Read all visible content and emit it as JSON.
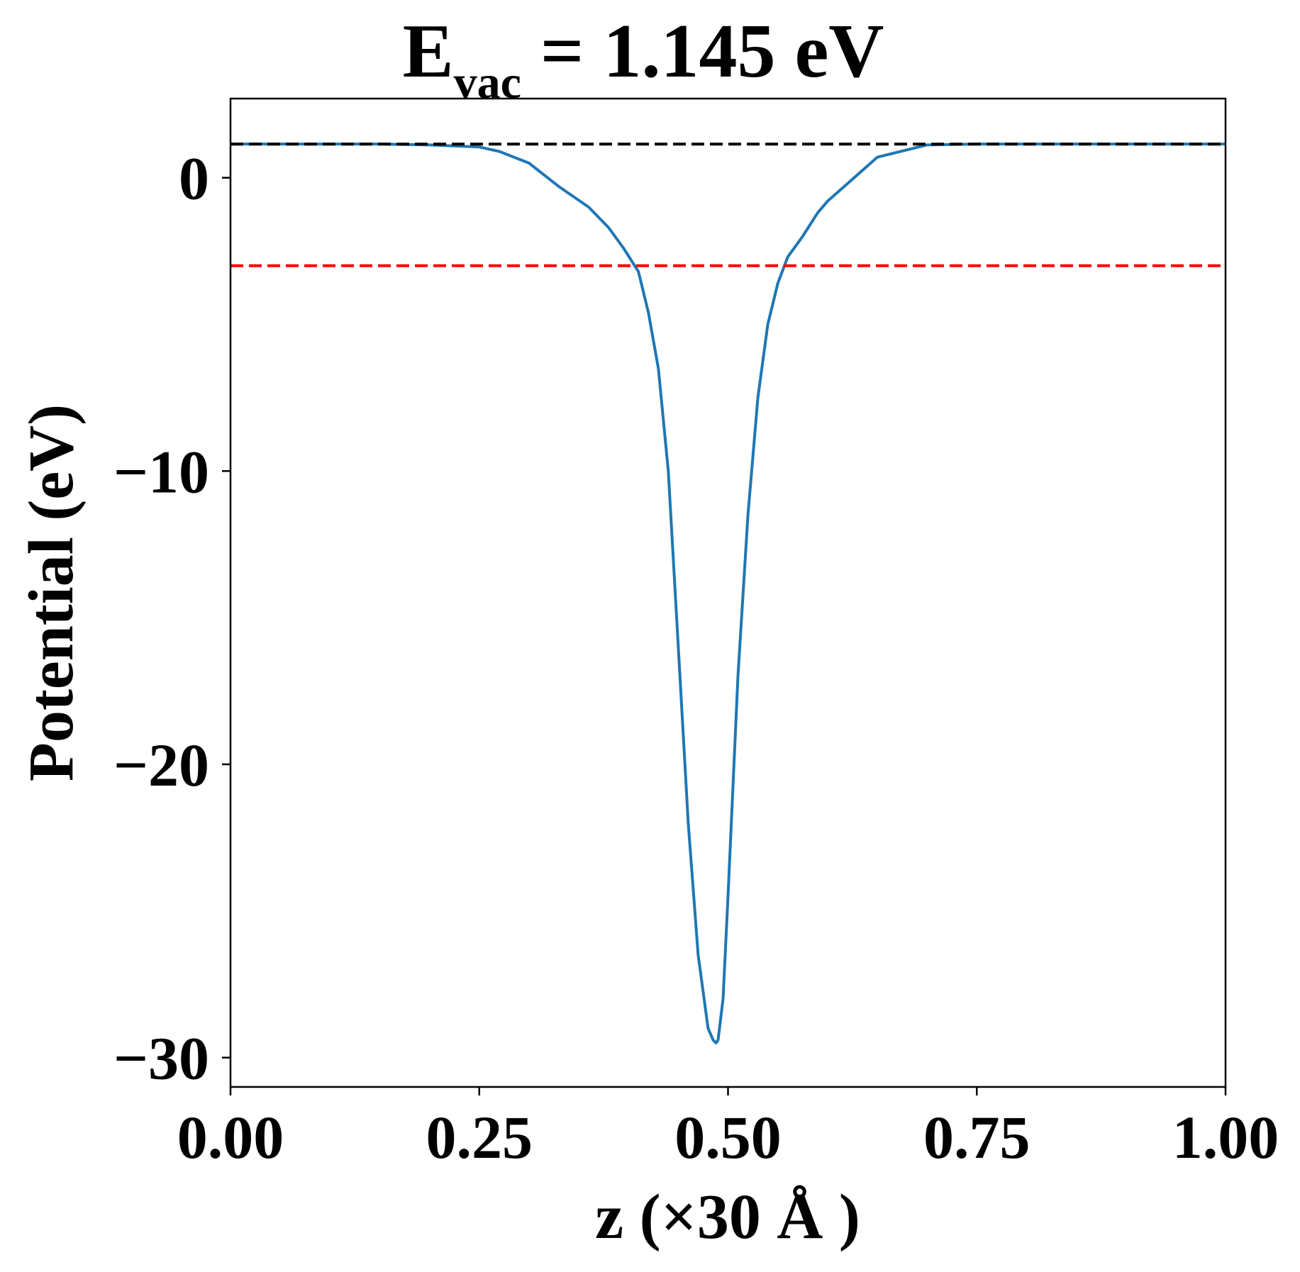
{
  "chart_data": {
    "type": "line",
    "title_main": "E",
    "title_sub": "vac",
    "title_rest": " = 1.145 eV",
    "xlabel": "z (×30 Å )",
    "ylabel": "Potential (eV)",
    "xlim": [
      0.0,
      1.0
    ],
    "ylim": [
      -31.0,
      2.7
    ],
    "x_ticks": [
      0.0,
      0.25,
      0.5,
      0.75,
      1.0
    ],
    "x_tick_labels": [
      "0.00",
      "0.25",
      "0.50",
      "0.75",
      "1.00"
    ],
    "y_ticks": [
      0,
      -10,
      -20,
      -30
    ],
    "y_tick_labels": [
      "0",
      "−10",
      "−20",
      "−30"
    ],
    "grid": false,
    "series": [
      {
        "color": "#1f77b4",
        "style": "solid",
        "x": [
          0.0,
          0.05,
          0.1,
          0.15,
          0.2,
          0.25,
          0.27,
          0.3,
          0.33,
          0.36,
          0.38,
          0.395,
          0.41,
          0.42,
          0.43,
          0.44,
          0.45,
          0.46,
          0.47,
          0.48,
          0.485,
          0.488,
          0.49,
          0.495,
          0.5,
          0.51,
          0.52,
          0.53,
          0.54,
          0.55,
          0.56,
          0.575,
          0.59,
          0.6,
          0.62,
          0.65,
          0.7,
          0.75,
          0.8,
          0.85,
          0.9,
          0.95,
          1.0
        ],
        "y": [
          1.15,
          1.15,
          1.15,
          1.15,
          1.12,
          1.05,
          0.9,
          0.5,
          -0.3,
          -1.0,
          -1.7,
          -2.4,
          -3.2,
          -4.6,
          -6.5,
          -10.0,
          -16.0,
          -22.0,
          -26.5,
          -29.0,
          -29.4,
          -29.5,
          -29.4,
          -28.0,
          -24.5,
          -17.0,
          -11.5,
          -7.5,
          -5.0,
          -3.6,
          -2.7,
          -2.0,
          -1.2,
          -0.8,
          -0.2,
          0.7,
          1.12,
          1.15,
          1.15,
          1.15,
          1.15,
          1.15,
          1.15
        ]
      },
      {
        "color": "#000000",
        "style": "dashed",
        "x": [
          0.0,
          1.0
        ],
        "y": [
          1.145,
          1.145
        ]
      },
      {
        "color": "#ff0000",
        "style": "dashed",
        "x": [
          0.0,
          1.0
        ],
        "y": [
          -3.0,
          -3.0
        ]
      }
    ]
  }
}
